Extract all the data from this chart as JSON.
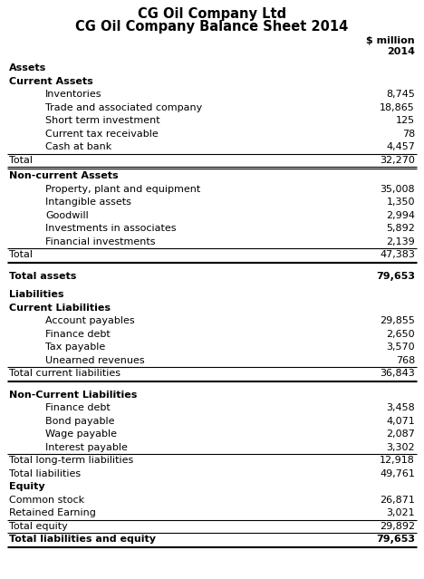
{
  "title1": "CG Oil Company Ltd",
  "title2": "CG Oil Company Balance Sheet 2014",
  "col_header1": "$ million",
  "col_header2": "2014",
  "rows": [
    {
      "label": "Assets",
      "value": "",
      "style": "bold",
      "indent": 0,
      "line_above": false,
      "line_below": false,
      "spacer": false
    },
    {
      "label": "Current Assets",
      "value": "",
      "style": "bold",
      "indent": 0,
      "line_above": false,
      "line_below": false,
      "spacer": false
    },
    {
      "label": "Inventories",
      "value": "8,745",
      "style": "normal",
      "indent": 1,
      "line_above": false,
      "line_below": false,
      "spacer": false
    },
    {
      "label": "Trade and associated company",
      "value": "18,865",
      "style": "normal",
      "indent": 1,
      "line_above": false,
      "line_below": false,
      "spacer": false
    },
    {
      "label": "Short term investment",
      "value": "125",
      "style": "normal",
      "indent": 1,
      "line_above": false,
      "line_below": false,
      "spacer": false
    },
    {
      "label": "Current tax receivable",
      "value": "78",
      "style": "normal",
      "indent": 1,
      "line_above": false,
      "line_below": false,
      "spacer": false
    },
    {
      "label": "Cash at bank",
      "value": "4,457",
      "style": "normal",
      "indent": 1,
      "line_above": false,
      "line_below": false,
      "spacer": false
    },
    {
      "label": "Total",
      "value": "32,270",
      "style": "normal",
      "indent": 0,
      "line_above": true,
      "line_below": true,
      "spacer": false
    },
    {
      "label": "Non-current Assets",
      "value": "",
      "style": "bold",
      "indent": 0,
      "line_above": false,
      "line_below": false,
      "spacer": false
    },
    {
      "label": "Property, plant and equipment",
      "value": "35,008",
      "style": "normal",
      "indent": 1,
      "line_above": false,
      "line_below": false,
      "spacer": false
    },
    {
      "label": "Intangible assets",
      "value": "1,350",
      "style": "normal",
      "indent": 1,
      "line_above": false,
      "line_below": false,
      "spacer": false
    },
    {
      "label": "Goodwill",
      "value": "2,994",
      "style": "normal",
      "indent": 1,
      "line_above": false,
      "line_below": false,
      "spacer": false
    },
    {
      "label": "Investments in associates",
      "value": "5,892",
      "style": "normal",
      "indent": 1,
      "line_above": false,
      "line_below": false,
      "spacer": false
    },
    {
      "label": "Financial investments",
      "value": "2,139",
      "style": "normal",
      "indent": 1,
      "line_above": false,
      "line_below": false,
      "spacer": false
    },
    {
      "label": "Total",
      "value": "47,383",
      "style": "normal",
      "indent": 0,
      "line_above": true,
      "line_below": true,
      "spacer": false
    },
    {
      "label": "",
      "value": "",
      "style": "normal",
      "indent": 0,
      "line_above": false,
      "line_below": false,
      "spacer": true
    },
    {
      "label": "Total assets",
      "value": "79,653",
      "style": "bold",
      "indent": 0,
      "line_above": false,
      "line_below": false,
      "spacer": false
    },
    {
      "label": "",
      "value": "",
      "style": "normal",
      "indent": 0,
      "line_above": false,
      "line_below": false,
      "spacer": true
    },
    {
      "label": "Liabilities",
      "value": "",
      "style": "bold",
      "indent": 0,
      "line_above": false,
      "line_below": false,
      "spacer": false
    },
    {
      "label": "Current Liabilities",
      "value": "",
      "style": "bold",
      "indent": 0,
      "line_above": false,
      "line_below": false,
      "spacer": false
    },
    {
      "label": "Account payables",
      "value": "29,855",
      "style": "normal",
      "indent": 1,
      "line_above": false,
      "line_below": false,
      "spacer": false
    },
    {
      "label": "Finance debt",
      "value": "2,650",
      "style": "normal",
      "indent": 1,
      "line_above": false,
      "line_below": false,
      "spacer": false
    },
    {
      "label": "Tax payable",
      "value": "3,570",
      "style": "normal",
      "indent": 1,
      "line_above": false,
      "line_below": false,
      "spacer": false
    },
    {
      "label": "Unearned revenues",
      "value": "768",
      "style": "normal",
      "indent": 1,
      "line_above": false,
      "line_below": false,
      "spacer": false
    },
    {
      "label": "Total current liabilities",
      "value": "36,843",
      "style": "normal",
      "indent": 0,
      "line_above": true,
      "line_below": true,
      "spacer": false
    },
    {
      "label": "",
      "value": "",
      "style": "normal",
      "indent": 0,
      "line_above": false,
      "line_below": false,
      "spacer": true
    },
    {
      "label": "Non-Current Liabilities",
      "value": "",
      "style": "bold",
      "indent": 0,
      "line_above": false,
      "line_below": false,
      "spacer": false
    },
    {
      "label": "Finance debt",
      "value": "3,458",
      "style": "normal",
      "indent": 1,
      "line_above": false,
      "line_below": false,
      "spacer": false
    },
    {
      "label": "Bond payable",
      "value": "4,071",
      "style": "normal",
      "indent": 1,
      "line_above": false,
      "line_below": false,
      "spacer": false
    },
    {
      "label": "Wage payable",
      "value": "2,087",
      "style": "normal",
      "indent": 1,
      "line_above": false,
      "line_below": false,
      "spacer": false
    },
    {
      "label": "Interest payable",
      "value": "3,302",
      "style": "normal",
      "indent": 1,
      "line_above": false,
      "line_below": false,
      "spacer": false
    },
    {
      "label": "Total long-term liabilities",
      "value": "12,918",
      "style": "normal",
      "indent": 0,
      "line_above": true,
      "line_below": false,
      "spacer": false
    },
    {
      "label": "Total liabilities",
      "value": "49,761",
      "style": "normal",
      "indent": 0,
      "line_above": false,
      "line_below": false,
      "spacer": false
    },
    {
      "label": "Equity",
      "value": "",
      "style": "bold",
      "indent": 0,
      "line_above": false,
      "line_below": false,
      "spacer": false
    },
    {
      "label": "Common stock",
      "value": "26,871",
      "style": "normal",
      "indent": 0,
      "line_above": false,
      "line_below": false,
      "spacer": false
    },
    {
      "label": "Retained Earning",
      "value": "3,021",
      "style": "normal",
      "indent": 0,
      "line_above": false,
      "line_below": false,
      "spacer": false
    },
    {
      "label": "Total equity",
      "value": "29,892",
      "style": "normal",
      "indent": 0,
      "line_above": true,
      "line_below": false,
      "spacer": false
    },
    {
      "label": "Total liabilities and equity",
      "value": "79,653",
      "style": "bold",
      "indent": 0,
      "line_above": true,
      "line_below": true,
      "spacer": false
    }
  ],
  "bg_color": "#ffffff",
  "text_color": "#000000",
  "line_color": "#000000",
  "font_size": 8.0,
  "title_font_size": 10.5,
  "fig_width": 4.68,
  "fig_height": 6.39,
  "dpi": 100
}
